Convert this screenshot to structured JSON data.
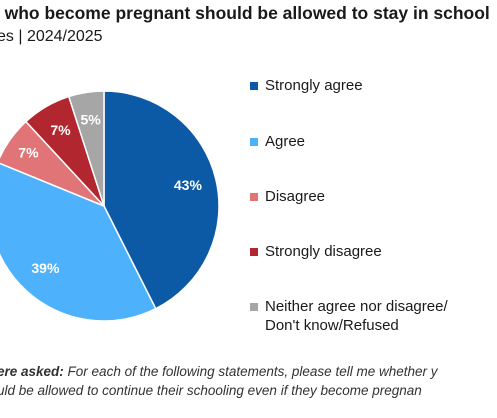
{
  "header": {
    "title": "s who become pregnant should be allowed to stay in school",
    "subtitle": "es  |  2024/2025"
  },
  "colors": {
    "strongly_agree": "#0c5aa6",
    "agree": "#4db2fb",
    "disagree": "#e07476",
    "strongly_disagree": "#b1262f",
    "neither": "#a6a6a6"
  },
  "chart_data": {
    "type": "pie",
    "slices": [
      {
        "name": "Strongly agree",
        "value": 43,
        "label": "43%",
        "color": "#0c5aa6"
      },
      {
        "name": "Agree",
        "value": 39,
        "label": "39%",
        "color": "#4db2fb"
      },
      {
        "name": "Disagree",
        "value": 7,
        "label": "7%",
        "color": "#e07476"
      },
      {
        "name": "Strongly disagree",
        "value": 7,
        "label": "7%",
        "color": "#b1262f"
      },
      {
        "name": "Neither agree nor disagree/ Don't know/Refused",
        "value": 5,
        "label": "5%",
        "color": "#a6a6a6"
      }
    ],
    "legend_position": "right",
    "legend": [
      {
        "lines": [
          "Strongly agree"
        ],
        "color": "#0c5aa6"
      },
      {
        "lines": [
          "Agree"
        ],
        "color": "#4db2fb"
      },
      {
        "lines": [
          "Disagree"
        ],
        "color": "#e07476"
      },
      {
        "lines": [
          "Strongly disagree"
        ],
        "color": "#b1262f"
      },
      {
        "lines": [
          "Neither agree nor disagree/",
          "Don't know/Refused"
        ],
        "color": "#a6a6a6"
      }
    ]
  },
  "note": {
    "lead": "ere asked:",
    "line1_rest": " For each of the following statements, please tell me whether y",
    "line2": "uld be allowed to continue their schooling even if they become pregnan"
  }
}
